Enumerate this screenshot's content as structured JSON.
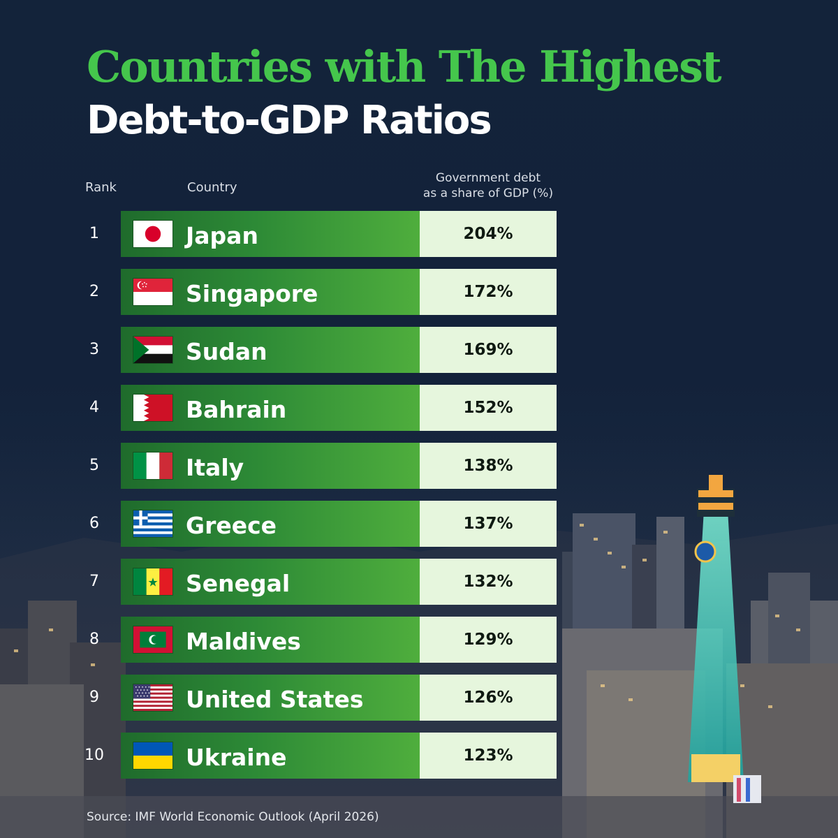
{
  "title_line1": "Countries with The Highest",
  "title_line2": "Debt-to-GDP Ratios",
  "headers": {
    "rank": "Rank",
    "country": "Country",
    "value_line1": "Government debt",
    "value_line2": "as a share of GDP (%)"
  },
  "source": "Source: IMF World Economic Outlook (April 2026)",
  "chart_data": {
    "type": "table",
    "columns": [
      "Rank",
      "Country",
      "Government debt as a share of GDP (%)"
    ],
    "rows": [
      {
        "rank": "1",
        "country": "Japan",
        "value_label": "204%",
        "value": 204,
        "flag": "japan-flag-icon"
      },
      {
        "rank": "2",
        "country": "Singapore",
        "value_label": "172%",
        "value": 172,
        "flag": "singapore-flag-icon"
      },
      {
        "rank": "3",
        "country": "Sudan",
        "value_label": "169%",
        "value": 169,
        "flag": "sudan-flag-icon"
      },
      {
        "rank": "4",
        "country": "Bahrain",
        "value_label": "152%",
        "value": 152,
        "flag": "bahrain-flag-icon"
      },
      {
        "rank": "5",
        "country": "Italy",
        "value_label": "138%",
        "value": 138,
        "flag": "italy-flag-icon"
      },
      {
        "rank": "6",
        "country": "Greece",
        "value_label": "137%",
        "value": 137,
        "flag": "greece-flag-icon"
      },
      {
        "rank": "7",
        "country": "Senegal",
        "value_label": "132%",
        "value": 132,
        "flag": "senegal-flag-icon"
      },
      {
        "rank": "8",
        "country": "Maldives",
        "value_label": "129%",
        "value": 129,
        "flag": "maldives-flag-icon"
      },
      {
        "rank": "9",
        "country": "United States",
        "value_label": "126%",
        "value": 126,
        "flag": "united-states-flag-icon"
      },
      {
        "rank": "10",
        "country": "Ukraine",
        "value_label": "123%",
        "value": 123,
        "flag": "ukraine-flag-icon"
      }
    ]
  },
  "colors": {
    "title_accent": "#45c64c",
    "bar_dark": "#1f6b2c",
    "bar_light": "#4fae3d",
    "value_cell": "#e6f6dd",
    "background": "#13233a"
  }
}
